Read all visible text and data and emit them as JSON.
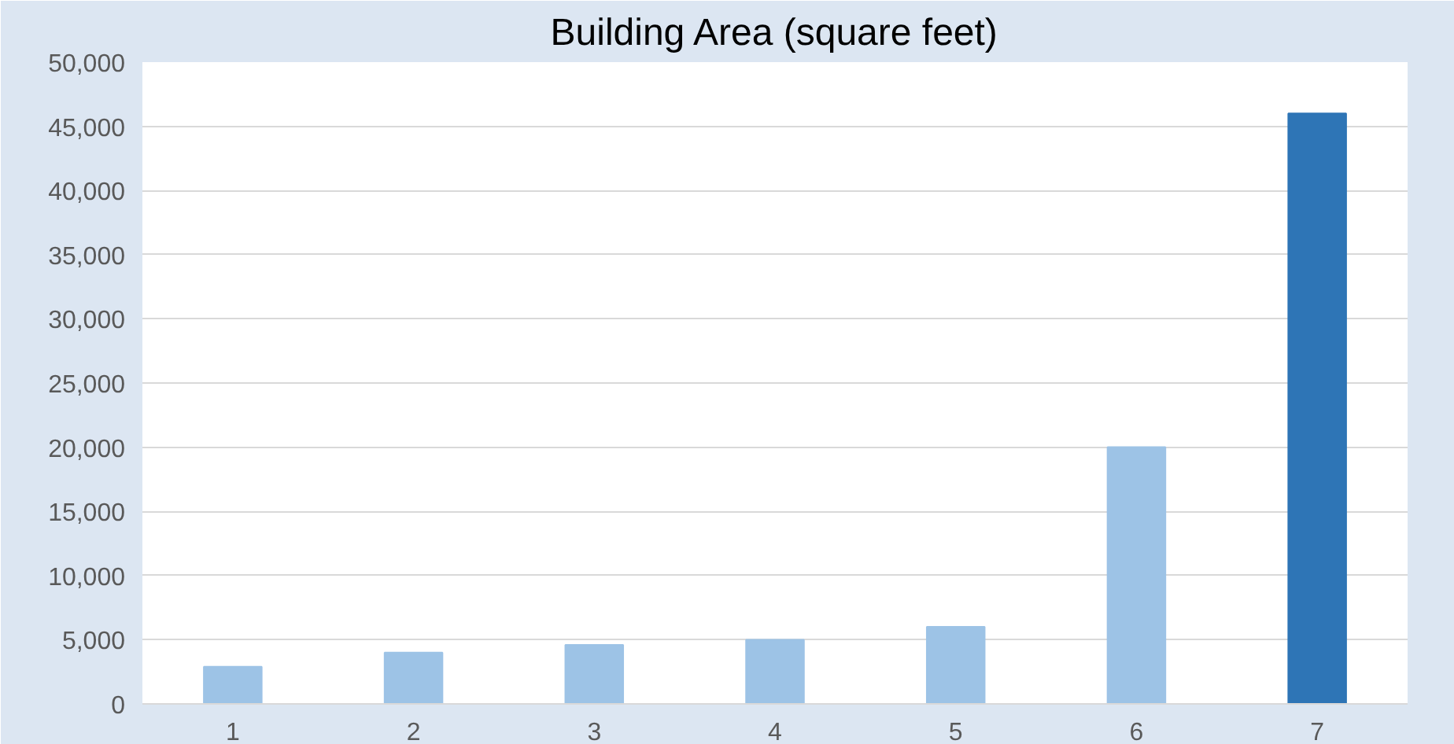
{
  "chart_data": {
    "type": "bar",
    "title": "Building Area (square feet)",
    "categories": [
      "1",
      "2",
      "3",
      "4",
      "5",
      "6",
      "7"
    ],
    "values": [
      2900,
      4000,
      4600,
      5000,
      6000,
      20000,
      46000
    ],
    "colors": [
      "#9dc3e6",
      "#9dc3e6",
      "#9dc3e6",
      "#9dc3e6",
      "#9dc3e6",
      "#9dc3e6",
      "#2e75b6"
    ],
    "ylim": [
      0,
      50000
    ],
    "yticks": [
      {
        "value": 0,
        "label": "0"
      },
      {
        "value": 5000,
        "label": "5,000"
      },
      {
        "value": 10000,
        "label": "10,000"
      },
      {
        "value": 15000,
        "label": "15,000"
      },
      {
        "value": 20000,
        "label": "20,000"
      },
      {
        "value": 25000,
        "label": "25,000"
      },
      {
        "value": 30000,
        "label": "30,000"
      },
      {
        "value": 35000,
        "label": "35,000"
      },
      {
        "value": 40000,
        "label": "40,000"
      },
      {
        "value": 45000,
        "label": "45,000"
      },
      {
        "value": 50000,
        "label": "50,000"
      }
    ],
    "grid": "y"
  }
}
